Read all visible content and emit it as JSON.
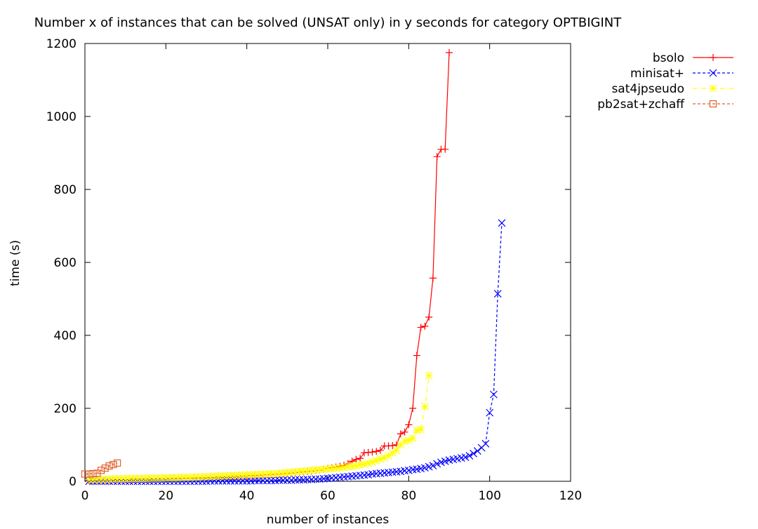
{
  "chart_data": {
    "type": "line",
    "title": "Number x of instances that can be solved (UNSAT only) in y seconds for category OPTBIGINT",
    "xlabel": "number of instances",
    "ylabel": "time (s)",
    "xlim": [
      0,
      120
    ],
    "ylim": [
      0,
      1200
    ],
    "xticks": [
      0,
      20,
      40,
      60,
      80,
      100,
      120
    ],
    "yticks": [
      0,
      200,
      400,
      600,
      800,
      1000,
      1200
    ],
    "grid": false,
    "legend_position": "top-right outside plot",
    "series": [
      {
        "name": "bsolo",
        "color": "#ff0000",
        "line_style": "solid",
        "marker": "plus",
        "points": [
          [
            1,
            2
          ],
          [
            2,
            2
          ],
          [
            3,
            3
          ],
          [
            4,
            3
          ],
          [
            5,
            3
          ],
          [
            6,
            3
          ],
          [
            7,
            4
          ],
          [
            8,
            4
          ],
          [
            9,
            4
          ],
          [
            10,
            4
          ],
          [
            11,
            4
          ],
          [
            12,
            5
          ],
          [
            13,
            5
          ],
          [
            14,
            5
          ],
          [
            15,
            5
          ],
          [
            16,
            5
          ],
          [
            17,
            6
          ],
          [
            18,
            6
          ],
          [
            19,
            6
          ],
          [
            20,
            6
          ],
          [
            21,
            7
          ],
          [
            22,
            7
          ],
          [
            23,
            7
          ],
          [
            24,
            8
          ],
          [
            25,
            8
          ],
          [
            26,
            8
          ],
          [
            27,
            9
          ],
          [
            28,
            9
          ],
          [
            29,
            9
          ],
          [
            30,
            10
          ],
          [
            31,
            10
          ],
          [
            32,
            11
          ],
          [
            33,
            11
          ],
          [
            34,
            12
          ],
          [
            35,
            12
          ],
          [
            36,
            13
          ],
          [
            37,
            13
          ],
          [
            38,
            14
          ],
          [
            39,
            14
          ],
          [
            40,
            15
          ],
          [
            41,
            15
          ],
          [
            42,
            16
          ],
          [
            43,
            16
          ],
          [
            44,
            17
          ],
          [
            45,
            18
          ],
          [
            46,
            18
          ],
          [
            47,
            19
          ],
          [
            48,
            20
          ],
          [
            49,
            21
          ],
          [
            50,
            22
          ],
          [
            51,
            23
          ],
          [
            52,
            24
          ],
          [
            53,
            25
          ],
          [
            54,
            26
          ],
          [
            55,
            27
          ],
          [
            56,
            28
          ],
          [
            57,
            30
          ],
          [
            58,
            31
          ],
          [
            59,
            33
          ],
          [
            60,
            35
          ],
          [
            61,
            37
          ],
          [
            62,
            39
          ],
          [
            63,
            41
          ],
          [
            64,
            44
          ],
          [
            65,
            48
          ],
          [
            66,
            55
          ],
          [
            67,
            60
          ],
          [
            68,
            63
          ],
          [
            69,
            78
          ],
          [
            70,
            79
          ],
          [
            71,
            80
          ],
          [
            72,
            82
          ],
          [
            73,
            85
          ],
          [
            74,
            97
          ],
          [
            75,
            97
          ],
          [
            76,
            98
          ],
          [
            77,
            100
          ],
          [
            78,
            130
          ],
          [
            79,
            135
          ],
          [
            80,
            155
          ],
          [
            81,
            200
          ],
          [
            82,
            345
          ],
          [
            83,
            422
          ],
          [
            84,
            425
          ],
          [
            85,
            450
          ],
          [
            86,
            557
          ],
          [
            87,
            890
          ],
          [
            88,
            910
          ],
          [
            89,
            910
          ],
          [
            90,
            1175
          ]
        ]
      },
      {
        "name": "minisat+",
        "color": "#0000ff",
        "line_style": "dashed",
        "marker": "cross",
        "points": [
          [
            1,
            0
          ],
          [
            2,
            0
          ],
          [
            3,
            0
          ],
          [
            4,
            0
          ],
          [
            5,
            0
          ],
          [
            6,
            0
          ],
          [
            7,
            0
          ],
          [
            8,
            0
          ],
          [
            9,
            0
          ],
          [
            10,
            0
          ],
          [
            11,
            0
          ],
          [
            12,
            0
          ],
          [
            13,
            0
          ],
          [
            14,
            0
          ],
          [
            15,
            0
          ],
          [
            16,
            0
          ],
          [
            17,
            0
          ],
          [
            18,
            0
          ],
          [
            19,
            0
          ],
          [
            20,
            0
          ],
          [
            21,
            0
          ],
          [
            22,
            0
          ],
          [
            23,
            0
          ],
          [
            24,
            0
          ],
          [
            25,
            0
          ],
          [
            26,
            0
          ],
          [
            27,
            0
          ],
          [
            28,
            0
          ],
          [
            29,
            0
          ],
          [
            30,
            0
          ],
          [
            31,
            1
          ],
          [
            32,
            1
          ],
          [
            33,
            1
          ],
          [
            34,
            1
          ],
          [
            35,
            1
          ],
          [
            36,
            1
          ],
          [
            37,
            1
          ],
          [
            38,
            1
          ],
          [
            39,
            1
          ],
          [
            40,
            1
          ],
          [
            41,
            1
          ],
          [
            42,
            2
          ],
          [
            43,
            2
          ],
          [
            44,
            2
          ],
          [
            45,
            2
          ],
          [
            46,
            2
          ],
          [
            47,
            2
          ],
          [
            48,
            3
          ],
          [
            49,
            3
          ],
          [
            50,
            3
          ],
          [
            51,
            3
          ],
          [
            52,
            4
          ],
          [
            53,
            4
          ],
          [
            54,
            4
          ],
          [
            55,
            5
          ],
          [
            56,
            5
          ],
          [
            57,
            6
          ],
          [
            58,
            6
          ],
          [
            59,
            7
          ],
          [
            60,
            8
          ],
          [
            61,
            9
          ],
          [
            62,
            10
          ],
          [
            63,
            11
          ],
          [
            64,
            12
          ],
          [
            65,
            13
          ],
          [
            66,
            14
          ],
          [
            67,
            15
          ],
          [
            68,
            16
          ],
          [
            69,
            17
          ],
          [
            70,
            18
          ],
          [
            71,
            20
          ],
          [
            72,
            21
          ],
          [
            73,
            22
          ],
          [
            74,
            23
          ],
          [
            75,
            24
          ],
          [
            76,
            25
          ],
          [
            77,
            26
          ],
          [
            78,
            27
          ],
          [
            79,
            29
          ],
          [
            80,
            30
          ],
          [
            81,
            32
          ],
          [
            82,
            33
          ],
          [
            83,
            35
          ],
          [
            84,
            37
          ],
          [
            85,
            40
          ],
          [
            86,
            43
          ],
          [
            87,
            48
          ],
          [
            88,
            52
          ],
          [
            89,
            55
          ],
          [
            90,
            58
          ],
          [
            91,
            60
          ],
          [
            92,
            62
          ],
          [
            93,
            64
          ],
          [
            94,
            66
          ],
          [
            95,
            70
          ],
          [
            96,
            76
          ],
          [
            97,
            83
          ],
          [
            98,
            92
          ],
          [
            99,
            103
          ],
          [
            100,
            188
          ],
          [
            101,
            238
          ],
          [
            102,
            514
          ],
          [
            103,
            708
          ]
        ]
      },
      {
        "name": "sat4jpseudo",
        "color": "#ffff00",
        "line_style": "dash-dot",
        "marker": "star",
        "points": [
          [
            1,
            5
          ],
          [
            2,
            5
          ],
          [
            3,
            6
          ],
          [
            4,
            6
          ],
          [
            5,
            6
          ],
          [
            6,
            6
          ],
          [
            7,
            7
          ],
          [
            8,
            7
          ],
          [
            9,
            7
          ],
          [
            10,
            7
          ],
          [
            11,
            8
          ],
          [
            12,
            8
          ],
          [
            13,
            8
          ],
          [
            14,
            8
          ],
          [
            15,
            8
          ],
          [
            16,
            9
          ],
          [
            17,
            9
          ],
          [
            18,
            9
          ],
          [
            19,
            9
          ],
          [
            20,
            10
          ],
          [
            21,
            10
          ],
          [
            22,
            10
          ],
          [
            23,
            10
          ],
          [
            24,
            11
          ],
          [
            25,
            11
          ],
          [
            26,
            11
          ],
          [
            27,
            12
          ],
          [
            28,
            12
          ],
          [
            29,
            12
          ],
          [
            30,
            13
          ],
          [
            31,
            13
          ],
          [
            32,
            14
          ],
          [
            33,
            14
          ],
          [
            34,
            15
          ],
          [
            35,
            15
          ],
          [
            36,
            16
          ],
          [
            37,
            16
          ],
          [
            38,
            17
          ],
          [
            39,
            17
          ],
          [
            40,
            18
          ],
          [
            41,
            18
          ],
          [
            42,
            19
          ],
          [
            43,
            19
          ],
          [
            44,
            20
          ],
          [
            45,
            20
          ],
          [
            46,
            21
          ],
          [
            47,
            21
          ],
          [
            48,
            22
          ],
          [
            49,
            23
          ],
          [
            50,
            24
          ],
          [
            51,
            25
          ],
          [
            52,
            26
          ],
          [
            53,
            27
          ],
          [
            54,
            28
          ],
          [
            55,
            29
          ],
          [
            56,
            30
          ],
          [
            57,
            31
          ],
          [
            58,
            32
          ],
          [
            59,
            33
          ],
          [
            60,
            34
          ],
          [
            61,
            35
          ],
          [
            62,
            36
          ],
          [
            63,
            37
          ],
          [
            64,
            38
          ],
          [
            65,
            40
          ],
          [
            66,
            41
          ],
          [
            67,
            43
          ],
          [
            68,
            45
          ],
          [
            69,
            47
          ],
          [
            70,
            50
          ],
          [
            71,
            53
          ],
          [
            72,
            57
          ],
          [
            73,
            61
          ],
          [
            74,
            65
          ],
          [
            75,
            70
          ],
          [
            76,
            78
          ],
          [
            77,
            85
          ],
          [
            78,
            100
          ],
          [
            79,
            110
          ],
          [
            80,
            112
          ],
          [
            81,
            118
          ],
          [
            82,
            140
          ],
          [
            83,
            142
          ],
          [
            84,
            205
          ],
          [
            85,
            290
          ]
        ]
      },
      {
        "name": "pb2sat+zchaff",
        "color": "#e0602a",
        "line_style": "dashed",
        "marker": "square",
        "points": [
          [
            0,
            20
          ],
          [
            1,
            20
          ],
          [
            2,
            21
          ],
          [
            3,
            22
          ],
          [
            4,
            30
          ],
          [
            5,
            36
          ],
          [
            6,
            42
          ],
          [
            7,
            46
          ],
          [
            8,
            50
          ]
        ]
      }
    ]
  }
}
